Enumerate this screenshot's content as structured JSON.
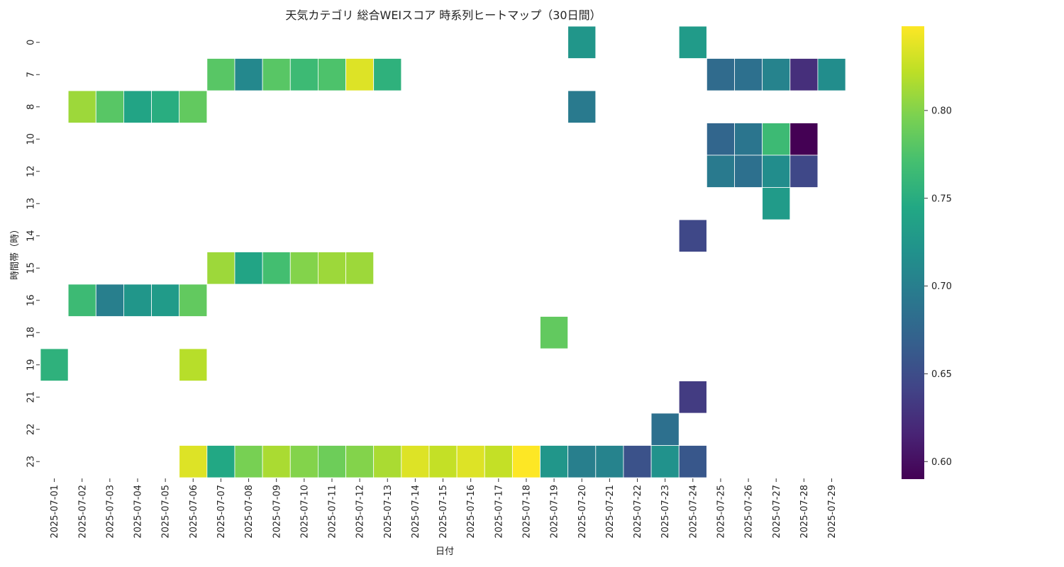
{
  "chart_data": {
    "type": "heatmap",
    "title": "天気カテゴリ 総合WEIスコア 時系列ヒートマップ（30日間）",
    "xlabel": "日付",
    "ylabel": "時間帯（時）",
    "x_categories": [
      "2025-07-01",
      "2025-07-02",
      "2025-07-03",
      "2025-07-04",
      "2025-07-05",
      "2025-07-06",
      "2025-07-07",
      "2025-07-08",
      "2025-07-09",
      "2025-07-10",
      "2025-07-11",
      "2025-07-12",
      "2025-07-13",
      "2025-07-14",
      "2025-07-15",
      "2025-07-16",
      "2025-07-17",
      "2025-07-18",
      "2025-07-19",
      "2025-07-20",
      "2025-07-21",
      "2025-07-22",
      "2025-07-23",
      "2025-07-24",
      "2025-07-25",
      "2025-07-26",
      "2025-07-27",
      "2025-07-28",
      "2025-07-29"
    ],
    "y_categories": [
      "0",
      "7",
      "8",
      "10",
      "12",
      "13",
      "14",
      "15",
      "16",
      "18",
      "19",
      "21",
      "22",
      "23"
    ],
    "colormap": "viridis",
    "vmin": 0.59,
    "vmax": 0.848,
    "colorbar_ticks": [
      "0.60",
      "0.65",
      "0.70",
      "0.75",
      "0.80"
    ],
    "values": [
      [
        null,
        null,
        null,
        null,
        null,
        null,
        null,
        null,
        null,
        null,
        null,
        null,
        null,
        null,
        null,
        null,
        null,
        null,
        null,
        0.725,
        null,
        null,
        null,
        0.73,
        null,
        null,
        null,
        null,
        null
      ],
      [
        null,
        null,
        null,
        null,
        null,
        null,
        0.78,
        0.71,
        0.78,
        0.765,
        0.775,
        0.835,
        0.755,
        null,
        null,
        null,
        null,
        null,
        null,
        null,
        null,
        null,
        null,
        null,
        0.68,
        0.685,
        0.705,
        0.625,
        0.715
      ],
      [
        null,
        0.81,
        0.78,
        0.74,
        0.75,
        0.785,
        null,
        null,
        null,
        null,
        null,
        null,
        null,
        null,
        null,
        null,
        null,
        null,
        null,
        0.695,
        null,
        null,
        null,
        null,
        null,
        null,
        null,
        null,
        null
      ],
      [
        null,
        null,
        null,
        null,
        null,
        null,
        null,
        null,
        null,
        null,
        null,
        null,
        null,
        null,
        null,
        null,
        null,
        null,
        null,
        null,
        null,
        null,
        null,
        null,
        0.675,
        0.69,
        0.765,
        0.59,
        null
      ],
      [
        null,
        null,
        null,
        null,
        null,
        null,
        null,
        null,
        null,
        null,
        null,
        null,
        null,
        null,
        null,
        null,
        null,
        null,
        null,
        null,
        null,
        null,
        null,
        null,
        0.695,
        0.685,
        0.715,
        0.645,
        null
      ],
      [
        null,
        null,
        null,
        null,
        null,
        null,
        null,
        null,
        null,
        null,
        null,
        null,
        null,
        null,
        null,
        null,
        null,
        null,
        null,
        null,
        null,
        null,
        null,
        null,
        null,
        null,
        0.73,
        null,
        null
      ],
      [
        null,
        null,
        null,
        null,
        null,
        null,
        null,
        null,
        null,
        null,
        null,
        null,
        null,
        null,
        null,
        null,
        null,
        null,
        null,
        null,
        null,
        null,
        null,
        0.645,
        null,
        null,
        null,
        null,
        null
      ],
      [
        null,
        null,
        null,
        null,
        null,
        null,
        0.81,
        0.74,
        0.77,
        0.8,
        0.81,
        0.81,
        null,
        null,
        null,
        null,
        null,
        null,
        null,
        null,
        null,
        null,
        null,
        null,
        null,
        null,
        null,
        null,
        null
      ],
      [
        null,
        0.765,
        0.7,
        0.725,
        0.73,
        0.785,
        null,
        null,
        null,
        null,
        null,
        null,
        null,
        null,
        null,
        null,
        null,
        null,
        null,
        null,
        null,
        null,
        null,
        null,
        null,
        null,
        null,
        null,
        null
      ],
      [
        null,
        null,
        null,
        null,
        null,
        null,
        null,
        null,
        null,
        null,
        null,
        null,
        null,
        null,
        null,
        null,
        null,
        null,
        0.785,
        null,
        null,
        null,
        null,
        null,
        null,
        null,
        null,
        null,
        null
      ],
      [
        0.755,
        null,
        null,
        null,
        null,
        0.82,
        null,
        null,
        null,
        null,
        null,
        null,
        null,
        null,
        null,
        null,
        null,
        null,
        null,
        null,
        null,
        null,
        null,
        null,
        null,
        null,
        null,
        null,
        null
      ],
      [
        null,
        null,
        null,
        null,
        null,
        null,
        null,
        null,
        null,
        null,
        null,
        null,
        null,
        null,
        null,
        null,
        null,
        null,
        null,
        null,
        null,
        null,
        null,
        0.635,
        null,
        null,
        null,
        null,
        null
      ],
      [
        null,
        null,
        null,
        null,
        null,
        null,
        null,
        null,
        null,
        null,
        null,
        null,
        null,
        null,
        null,
        null,
        null,
        null,
        null,
        null,
        null,
        null,
        0.685,
        null,
        null,
        null,
        null,
        null,
        null
      ],
      [
        null,
        null,
        null,
        null,
        null,
        0.835,
        0.745,
        0.795,
        0.815,
        0.8,
        0.79,
        0.8,
        0.815,
        0.835,
        0.825,
        0.835,
        0.825,
        0.848,
        0.725,
        0.7,
        0.705,
        0.655,
        0.72,
        0.66,
        null,
        null,
        null,
        null,
        null
      ]
    ]
  }
}
